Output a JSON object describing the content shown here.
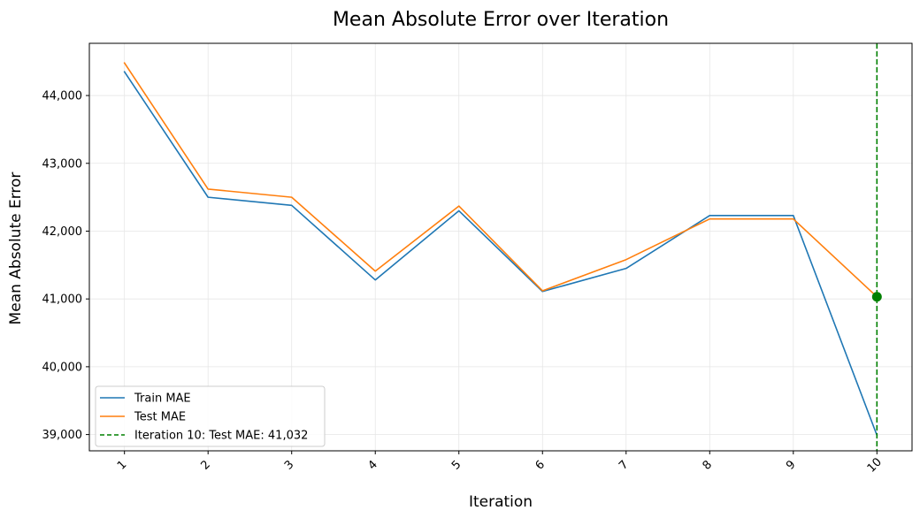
{
  "chart_data": {
    "type": "line",
    "title": "Mean Absolute Error over Iteration",
    "xlabel": "Iteration",
    "ylabel": "Mean Absolute Error",
    "x": [
      1,
      2,
      3,
      4,
      5,
      6,
      7,
      8,
      9,
      10
    ],
    "x_tick_labels": [
      "1",
      "2",
      "3",
      "4",
      "5",
      "6",
      "7",
      "8",
      "9",
      "10"
    ],
    "y_ticks": [
      39000,
      40000,
      41000,
      42000,
      43000,
      44000
    ],
    "y_tick_labels": [
      "39,000",
      "40,000",
      "41,000",
      "42,000",
      "43,000",
      "44,000"
    ],
    "xlim": [
      0.58,
      10.42
    ],
    "ylim": [
      38760,
      44770
    ],
    "grid": true,
    "legend_position": "lower-left",
    "series": [
      {
        "name": "Train MAE",
        "color": "#1f77b4",
        "values": [
          44350,
          42500,
          42380,
          41280,
          42300,
          41110,
          41450,
          42230,
          42230,
          38990
        ]
      },
      {
        "name": "Test MAE",
        "color": "#ff7f0e",
        "values": [
          44480,
          42620,
          42500,
          41410,
          42370,
          41120,
          41580,
          42180,
          42180,
          41032
        ]
      }
    ],
    "marker": {
      "label": "Iteration 10: Test MAE: 41,032",
      "x": 10,
      "y": 41032,
      "color": "#008000",
      "style": "dashed-vertical-line-with-point"
    }
  }
}
